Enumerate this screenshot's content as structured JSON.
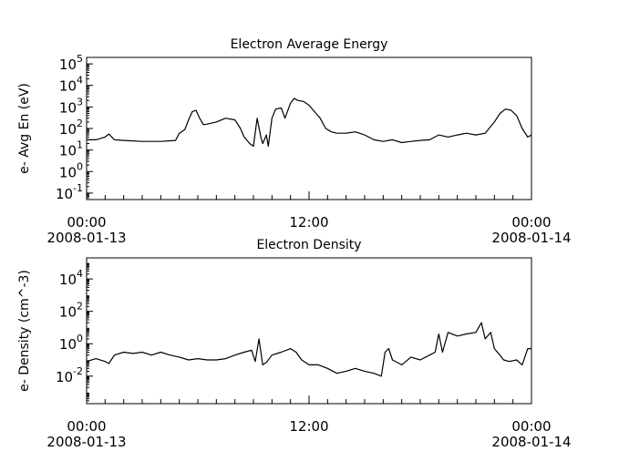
{
  "chart_data": [
    {
      "type": "line",
      "title": "Electron Average Energy",
      "ylabel": "e- Avg En (eV)",
      "yscale": "log",
      "ylim": [
        0.05,
        200000
      ],
      "yticks": [
        {
          "value": 0.1,
          "base": "10",
          "exp": "-1"
        },
        {
          "value": 1,
          "base": "10",
          "exp": "0"
        },
        {
          "value": 10,
          "base": "10",
          "exp": "1"
        },
        {
          "value": 100,
          "base": "10",
          "exp": "2"
        },
        {
          "value": 1000,
          "base": "10",
          "exp": "3"
        },
        {
          "value": 10000,
          "base": "10",
          "exp": "4"
        },
        {
          "value": 100000,
          "base": "10",
          "exp": "5"
        }
      ],
      "xlim_hours": [
        0,
        24
      ],
      "xticks": [
        {
          "hour": 0,
          "time": "00:00",
          "date": "2008-01-13"
        },
        {
          "hour": 12,
          "time": "12:00",
          "date": ""
        },
        {
          "hour": 24,
          "time": "00:00",
          "date": "2008-01-14"
        }
      ],
      "series": [
        {
          "x_hours": [
            0.0,
            0.5,
            1.0,
            1.2,
            1.5,
            2.0,
            3.0,
            4.0,
            4.8,
            5.0,
            5.3,
            5.5,
            5.7,
            5.9,
            6.1,
            6.3,
            6.5,
            7.0,
            7.5,
            8.0,
            8.3,
            8.5,
            8.8,
            9.0,
            9.2,
            9.4,
            9.5,
            9.7,
            9.8,
            10.0,
            10.2,
            10.5,
            10.7,
            11.0,
            11.2,
            11.4,
            11.7,
            12.0,
            12.3,
            12.6,
            12.9,
            13.2,
            13.5,
            14.0,
            14.5,
            15.0,
            15.5,
            16.0,
            16.5,
            17.0,
            17.5,
            18.0,
            18.5,
            19.0,
            19.5,
            20.0,
            20.5,
            21.0,
            21.5,
            22.0,
            22.3,
            22.6,
            22.9,
            23.2,
            23.5,
            23.8,
            24.0
          ],
          "y": [
            30,
            30,
            40,
            55,
            30,
            28,
            25,
            25,
            28,
            60,
            90,
            250,
            600,
            700,
            300,
            150,
            160,
            200,
            300,
            250,
            100,
            40,
            20,
            15,
            300,
            40,
            20,
            50,
            15,
            300,
            800,
            900,
            300,
            1500,
            2500,
            2000,
            1800,
            1200,
            600,
            300,
            100,
            70,
            60,
            60,
            70,
            50,
            30,
            25,
            30,
            22,
            25,
            28,
            30,
            50,
            40,
            50,
            60,
            50,
            60,
            200,
            500,
            800,
            700,
            400,
            100,
            40,
            50
          ]
        }
      ]
    },
    {
      "type": "line",
      "title": "Electron Density",
      "ylabel": "e- Density (cm^-3)",
      "yscale": "log",
      "ylim": [
        0.0002,
        200000
      ],
      "yticks": [
        {
          "value": 0.01,
          "base": "10",
          "exp": "-2"
        },
        {
          "value": 1,
          "base": "10",
          "exp": "0"
        },
        {
          "value": 100,
          "base": "10",
          "exp": "2"
        },
        {
          "value": 10000,
          "base": "10",
          "exp": "4"
        }
      ],
      "xlim_hours": [
        0,
        24
      ],
      "xticks": [
        {
          "hour": 0,
          "time": "00:00",
          "date": "2008-01-13"
        },
        {
          "hour": 12,
          "time": "12:00",
          "date": ""
        },
        {
          "hour": 24,
          "time": "00:00",
          "date": "2008-01-14"
        }
      ],
      "series": [
        {
          "x_hours": [
            0.0,
            0.5,
            1.0,
            1.2,
            1.5,
            2.0,
            2.5,
            3.0,
            3.5,
            4.0,
            4.5,
            5.0,
            5.5,
            6.0,
            6.5,
            7.0,
            7.5,
            8.0,
            8.5,
            8.9,
            9.1,
            9.3,
            9.5,
            9.7,
            10.0,
            10.5,
            11.0,
            11.3,
            11.6,
            12.0,
            12.5,
            13.0,
            13.5,
            14.0,
            14.5,
            15.0,
            15.5,
            15.9,
            16.1,
            16.3,
            16.5,
            17.0,
            17.5,
            18.0,
            18.5,
            18.8,
            19.0,
            19.2,
            19.5,
            20.0,
            20.5,
            21.0,
            21.3,
            21.5,
            21.8,
            22.0,
            22.3,
            22.5,
            22.8,
            23.2,
            23.5,
            23.8,
            24.0
          ],
          "y": [
            0.08,
            0.12,
            0.08,
            0.06,
            0.2,
            0.3,
            0.25,
            0.3,
            0.2,
            0.3,
            0.2,
            0.15,
            0.1,
            0.12,
            0.1,
            0.1,
            0.12,
            0.2,
            0.3,
            0.4,
            0.08,
            2.0,
            0.05,
            0.07,
            0.2,
            0.3,
            0.5,
            0.3,
            0.1,
            0.05,
            0.05,
            0.03,
            0.015,
            0.02,
            0.03,
            0.02,
            0.015,
            0.01,
            0.3,
            0.5,
            0.1,
            0.05,
            0.15,
            0.1,
            0.2,
            0.3,
            4.0,
            0.3,
            5.0,
            3.0,
            4.0,
            5.0,
            20.0,
            2.0,
            5.0,
            0.5,
            0.2,
            0.1,
            0.08,
            0.1,
            0.05,
            0.5,
            0.5
          ]
        }
      ]
    }
  ]
}
